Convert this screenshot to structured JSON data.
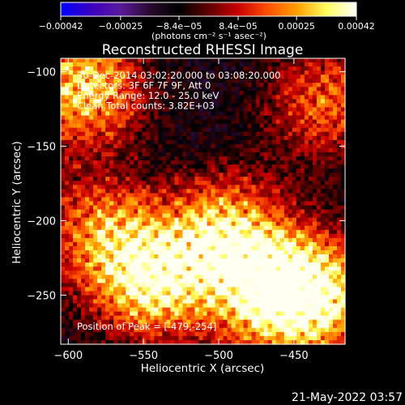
{
  "chart_data": {
    "type": "heatmap",
    "title": "Reconstructed RHESSI Image",
    "xlabel": "Heliocentric X (arcsec)",
    "ylabel": "Heliocentric Y (arcsec)",
    "xlim": [
      -605,
      -416
    ],
    "ylim": [
      -283,
      -91
    ],
    "xticks": [
      -600,
      -550,
      -500,
      -450
    ],
    "xtick_labels": [
      "−600",
      "−550",
      "−500",
      "−450"
    ],
    "yticks": [
      -100,
      -150,
      -200,
      -250
    ],
    "ytick_labels": [
      "−100",
      "−150",
      "−200",
      "−250"
    ],
    "colorbar": {
      "range": [
        -0.00042,
        0.00042
      ],
      "ticks": [
        -0.00042,
        -0.00025,
        -8.4e-05,
        8.4e-05,
        0.00025,
        0.00042
      ],
      "tick_labels": [
        "−0.00042",
        "−0.00025",
        "−8.4e−05",
        "8.4e−05",
        "0.00025",
        "0.00042"
      ],
      "unit_label": "(photons cm⁻² s⁻¹ asec⁻²)",
      "colors": [
        "#0000ff",
        "#3a00c0",
        "#5a1a9c",
        "#2a0a30",
        "#000000",
        "#600000",
        "#c80000",
        "#ff5000",
        "#ffa000",
        "#ffff60",
        "#ffffff"
      ]
    },
    "annotations": [
      "30-Dec-2014 03:02:20.000 to 03:08:20.000",
      "Detectors: 3F 6F 7F 9F, Att 0",
      "Energy Range: 12.0 - 25.0 keV",
      "Clean      Total counts: 3.82E+03"
    ],
    "peak_label": "Position of Peak = [-479,-254]",
    "peak": {
      "x": -479,
      "y": -254
    },
    "brightness_regions": [
      {
        "x": -590,
        "y": -110,
        "strength": 0.85
      },
      {
        "x": -545,
        "y": -240,
        "strength": 0.9
      },
      {
        "x": -580,
        "y": -205,
        "strength": 0.55
      },
      {
        "x": -495,
        "y": -210,
        "strength": 0.8
      },
      {
        "x": -465,
        "y": -250,
        "strength": 0.85
      },
      {
        "x": -430,
        "y": -250,
        "strength": 0.75
      },
      {
        "x": -430,
        "y": -120,
        "strength": 0.55
      }
    ]
  },
  "footer": {
    "date": "21-May-2022 03:57"
  }
}
